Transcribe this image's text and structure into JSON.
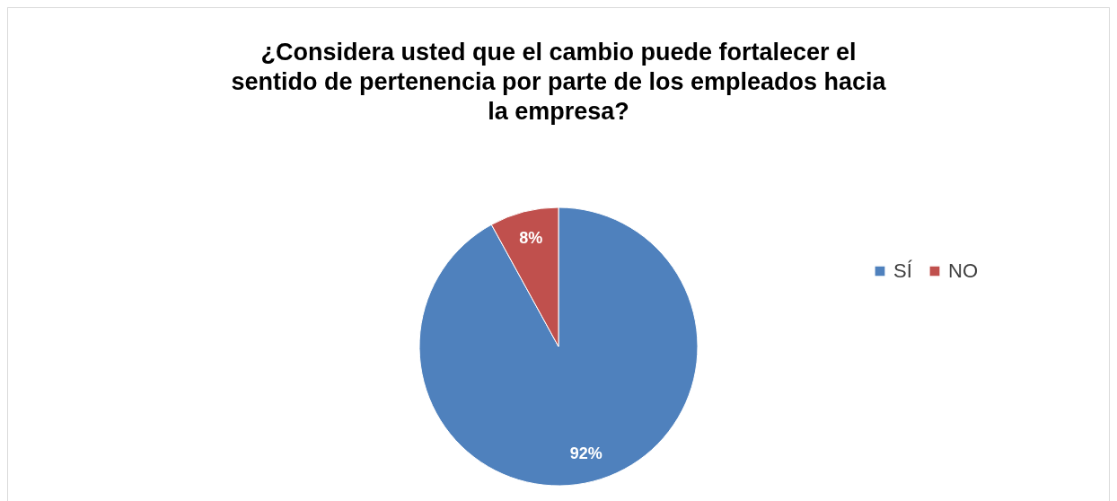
{
  "chart_data": {
    "type": "pie",
    "title": "¿Considera usted que el cambio puede fortalecer el sentido de pertenencia por parte de los empleados  hacia la empresa?",
    "categories": [
      "SÍ",
      "NO"
    ],
    "values": [
      92,
      8
    ],
    "colors": [
      "#4f81bd",
      "#c0504d"
    ],
    "value_labels": [
      "92%",
      "8%"
    ],
    "legend": "right"
  }
}
